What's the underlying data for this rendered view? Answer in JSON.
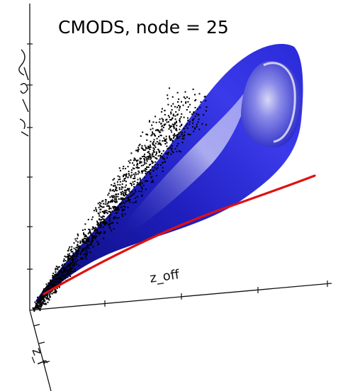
{
  "chart_data": {
    "type": "scatter",
    "title": "CMODS, node = 25",
    "xlabel": "z_off",
    "ylabel": "",
    "zlabel": "z_f",
    "projection": "3d",
    "grid": false,
    "series": [
      {
        "kind": "points",
        "color": "#000000"
      },
      {
        "kind": "isosurface",
        "color": "#2f2fc8"
      },
      {
        "kind": "line",
        "color": "#e01010"
      }
    ]
  }
}
